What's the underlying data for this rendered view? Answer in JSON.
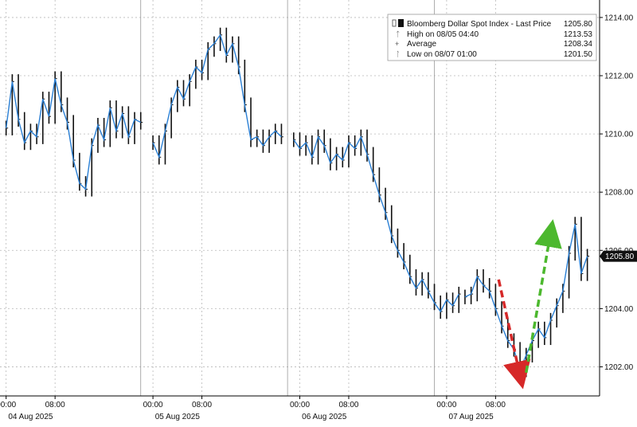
{
  "chart_data": {
    "type": "line",
    "style": "ohlc-bars-with-close-line",
    "instrument": "Bloomberg Dollar Spot Index",
    "colors": {
      "bars": "#111111",
      "close_line": "#2a7fd4",
      "grid": "#b8b8b8",
      "down_arrow": "#d62828",
      "up_arrow": "#4cb82e",
      "last_price_box": "#111111"
    },
    "ylim": [
      1201.0,
      1214.6
    ],
    "y_ticks": [
      {
        "value": 1202,
        "label": "1202.00"
      },
      {
        "value": 1204,
        "label": "1204.00"
      },
      {
        "value": 1206,
        "label": "1206.00"
      },
      {
        "value": 1208,
        "label": "1208.00"
      },
      {
        "value": 1210,
        "label": "1210.00"
      },
      {
        "value": 1212,
        "label": "1212.00"
      },
      {
        "value": 1214,
        "label": "1214.00"
      }
    ],
    "x_time_ticks": [
      "00:00",
      "08:00",
      "00:00",
      "08:00",
      "00:00",
      "08:00",
      "00:00",
      "08:00"
    ],
    "x_date_labels": [
      "04 Aug 2025",
      "05 Aug 2025",
      "06 Aug 2025",
      "07 Aug 2025"
    ],
    "legend": {
      "title": "Bloomberg Dollar Spot Index - Last Price",
      "title_value": "1205.80",
      "rows": [
        {
          "label": "High on 08/05 04:40",
          "value": "1213.53"
        },
        {
          "label": "Average",
          "value": "1208.34"
        },
        {
          "label": "Low on 08/07 01:00",
          "value": "1201.50"
        }
      ]
    },
    "last_price": {
      "label": "1205.80",
      "value": 1205.8
    },
    "series": [
      {
        "segment": "04 Aug 2025",
        "x_hours": [
          0,
          2,
          4,
          6,
          8,
          10,
          12,
          14,
          16,
          18,
          20,
          22,
          24,
          26,
          28,
          30,
          32,
          34,
          36,
          38,
          40,
          42,
          44
        ],
        "close": [
          1210.2,
          1211.8,
          1210.5,
          1209.7,
          1210.1,
          1209.9,
          1211.2,
          1210.6,
          1211.9,
          1211.0,
          1210.4,
          1209.1,
          1208.3,
          1208.1,
          1209.6,
          1210.3,
          1209.8,
          1210.9,
          1210.1,
          1210.7,
          1209.9,
          1210.5,
          1210.4
        ]
      },
      {
        "segment": "05 Aug 2025",
        "x_hours": [
          48,
          50,
          52,
          54,
          56,
          58,
          60,
          62,
          64,
          66,
          68,
          70,
          72,
          74,
          76,
          78,
          80,
          82,
          84,
          86,
          88,
          90
        ],
        "close": [
          1209.7,
          1209.2,
          1210.1,
          1211.0,
          1211.6,
          1211.2,
          1211.8,
          1212.3,
          1212.1,
          1212.9,
          1213.1,
          1213.4,
          1212.7,
          1213.1,
          1212.3,
          1211.0,
          1209.8,
          1209.9,
          1209.6,
          1209.9,
          1210.1,
          1209.9
        ]
      },
      {
        "segment": "06 Aug 2025",
        "x_hours": [
          94,
          96,
          98,
          100,
          102,
          104,
          106,
          108,
          110,
          112,
          114,
          116,
          118,
          120,
          122,
          124,
          126,
          128,
          130,
          132,
          134,
          136,
          138,
          140,
          142,
          144,
          146,
          148
        ],
        "close": [
          1209.8,
          1209.5,
          1209.7,
          1209.2,
          1209.9,
          1209.6,
          1209.0,
          1209.3,
          1209.1,
          1209.7,
          1209.5,
          1209.9,
          1209.3,
          1208.6,
          1207.9,
          1207.3,
          1206.5,
          1206.0,
          1205.6,
          1205.1,
          1204.7,
          1205.0,
          1204.6,
          1204.2,
          1203.9,
          1204.3,
          1204.1,
          1204.5
        ]
      },
      {
        "segment": "07 Aug 2025",
        "x_hours": [
          150,
          152,
          154,
          156,
          158,
          160,
          162,
          164,
          166,
          168,
          170,
          172,
          174,
          176,
          178,
          180,
          182,
          184,
          186,
          188,
          190
        ],
        "close": [
          1204.4,
          1204.5,
          1205.1,
          1204.8,
          1204.6,
          1204.0,
          1203.4,
          1202.9,
          1202.6,
          1201.9,
          1202.4,
          1202.9,
          1203.3,
          1203.0,
          1203.6,
          1204.1,
          1204.6,
          1205.9,
          1206.9,
          1205.2,
          1205.8
        ]
      }
    ],
    "annotations": [
      {
        "type": "arrow",
        "direction": "down",
        "color": "red",
        "from": {
          "x_hours": 161,
          "y": 1205.0
        },
        "to": {
          "x_hours": 168,
          "y": 1201.7
        }
      },
      {
        "type": "arrow",
        "direction": "up",
        "color": "green",
        "from": {
          "x_hours": 170,
          "y": 1201.8
        },
        "to": {
          "x_hours": 178,
          "y": 1206.6
        }
      }
    ],
    "x_range_hours": [
      -2,
      194
    ]
  }
}
